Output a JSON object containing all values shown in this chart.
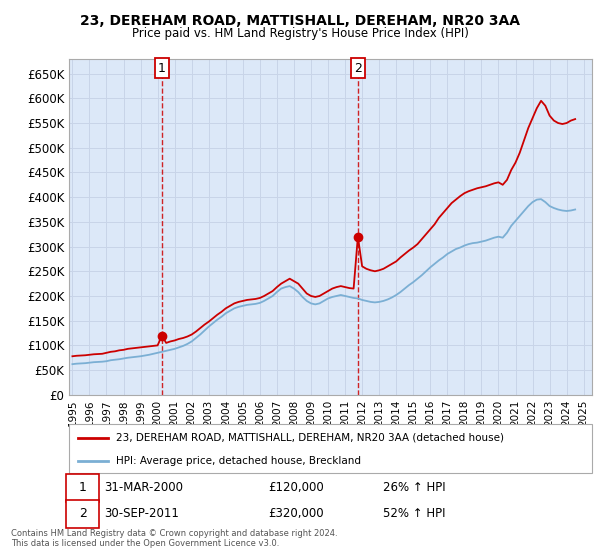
{
  "title": "23, DEREHAM ROAD, MATTISHALL, DEREHAM, NR20 3AA",
  "subtitle": "Price paid vs. HM Land Registry's House Price Index (HPI)",
  "ylim": [
    0,
    680000
  ],
  "yticks": [
    0,
    50000,
    100000,
    150000,
    200000,
    250000,
    300000,
    350000,
    400000,
    450000,
    500000,
    550000,
    600000,
    650000
  ],
  "xlim_start": 1994.8,
  "xlim_end": 2025.5,
  "xtick_years": [
    1995,
    1996,
    1997,
    1998,
    1999,
    2000,
    2001,
    2002,
    2003,
    2004,
    2005,
    2006,
    2007,
    2008,
    2009,
    2010,
    2011,
    2012,
    2013,
    2014,
    2015,
    2016,
    2017,
    2018,
    2019,
    2020,
    2021,
    2022,
    2023,
    2024,
    2025
  ],
  "red_line_color": "#cc0000",
  "blue_line_color": "#7bafd4",
  "grid_color": "#c8d4e8",
  "bg_color": "#dce8f8",
  "sale1_x": 2000.25,
  "sale1_y": 120000,
  "sale2_x": 2011.75,
  "sale2_y": 320000,
  "legend_line1": "23, DEREHAM ROAD, MATTISHALL, DEREHAM, NR20 3AA (detached house)",
  "legend_line2": "HPI: Average price, detached house, Breckland",
  "sale1_date": "31-MAR-2000",
  "sale1_price": "£120,000",
  "sale1_hpi": "26% ↑ HPI",
  "sale2_date": "30-SEP-2011",
  "sale2_price": "£320,000",
  "sale2_hpi": "52% ↑ HPI",
  "footer_line1": "Contains HM Land Registry data © Crown copyright and database right 2024.",
  "footer_line2": "This data is licensed under the Open Government Licence v3.0.",
  "red_hpi_data": [
    [
      1995.0,
      78000
    ],
    [
      1995.25,
      79000
    ],
    [
      1995.5,
      79500
    ],
    [
      1995.75,
      80000
    ],
    [
      1996.0,
      81000
    ],
    [
      1996.25,
      82000
    ],
    [
      1996.5,
      82500
    ],
    [
      1996.75,
      83000
    ],
    [
      1997.0,
      85000
    ],
    [
      1997.25,
      87000
    ],
    [
      1997.5,
      88000
    ],
    [
      1997.75,
      90000
    ],
    [
      1998.0,
      91000
    ],
    [
      1998.25,
      93000
    ],
    [
      1998.5,
      94000
    ],
    [
      1998.75,
      95000
    ],
    [
      1999.0,
      96000
    ],
    [
      1999.25,
      97000
    ],
    [
      1999.5,
      98000
    ],
    [
      1999.75,
      99000
    ],
    [
      2000.0,
      100000
    ],
    [
      2000.25,
      120000
    ],
    [
      2000.5,
      105000
    ],
    [
      2000.75,
      108000
    ],
    [
      2001.0,
      110000
    ],
    [
      2001.25,
      113000
    ],
    [
      2001.5,
      115000
    ],
    [
      2001.75,
      118000
    ],
    [
      2002.0,
      122000
    ],
    [
      2002.25,
      128000
    ],
    [
      2002.5,
      135000
    ],
    [
      2002.75,
      142000
    ],
    [
      2003.0,
      148000
    ],
    [
      2003.25,
      155000
    ],
    [
      2003.5,
      162000
    ],
    [
      2003.75,
      168000
    ],
    [
      2004.0,
      175000
    ],
    [
      2004.25,
      180000
    ],
    [
      2004.5,
      185000
    ],
    [
      2004.75,
      188000
    ],
    [
      2005.0,
      190000
    ],
    [
      2005.25,
      192000
    ],
    [
      2005.5,
      193000
    ],
    [
      2005.75,
      194000
    ],
    [
      2006.0,
      196000
    ],
    [
      2006.25,
      200000
    ],
    [
      2006.5,
      205000
    ],
    [
      2006.75,
      210000
    ],
    [
      2007.0,
      218000
    ],
    [
      2007.25,
      225000
    ],
    [
      2007.5,
      230000
    ],
    [
      2007.75,
      235000
    ],
    [
      2008.0,
      230000
    ],
    [
      2008.25,
      225000
    ],
    [
      2008.5,
      215000
    ],
    [
      2008.75,
      205000
    ],
    [
      2009.0,
      200000
    ],
    [
      2009.25,
      198000
    ],
    [
      2009.5,
      200000
    ],
    [
      2009.75,
      205000
    ],
    [
      2010.0,
      210000
    ],
    [
      2010.25,
      215000
    ],
    [
      2010.5,
      218000
    ],
    [
      2010.75,
      220000
    ],
    [
      2011.0,
      218000
    ],
    [
      2011.25,
      216000
    ],
    [
      2011.5,
      215000
    ],
    [
      2011.75,
      320000
    ],
    [
      2012.0,
      260000
    ],
    [
      2012.25,
      255000
    ],
    [
      2012.5,
      252000
    ],
    [
      2012.75,
      250000
    ],
    [
      2013.0,
      252000
    ],
    [
      2013.25,
      255000
    ],
    [
      2013.5,
      260000
    ],
    [
      2013.75,
      265000
    ],
    [
      2014.0,
      270000
    ],
    [
      2014.25,
      278000
    ],
    [
      2014.5,
      285000
    ],
    [
      2014.75,
      292000
    ],
    [
      2015.0,
      298000
    ],
    [
      2015.25,
      305000
    ],
    [
      2015.5,
      315000
    ],
    [
      2015.75,
      325000
    ],
    [
      2016.0,
      335000
    ],
    [
      2016.25,
      345000
    ],
    [
      2016.5,
      358000
    ],
    [
      2016.75,
      368000
    ],
    [
      2017.0,
      378000
    ],
    [
      2017.25,
      388000
    ],
    [
      2017.5,
      395000
    ],
    [
      2017.75,
      402000
    ],
    [
      2018.0,
      408000
    ],
    [
      2018.25,
      412000
    ],
    [
      2018.5,
      415000
    ],
    [
      2018.75,
      418000
    ],
    [
      2019.0,
      420000
    ],
    [
      2019.25,
      422000
    ],
    [
      2019.5,
      425000
    ],
    [
      2019.75,
      428000
    ],
    [
      2020.0,
      430000
    ],
    [
      2020.25,
      425000
    ],
    [
      2020.5,
      435000
    ],
    [
      2020.75,
      455000
    ],
    [
      2021.0,
      470000
    ],
    [
      2021.25,
      490000
    ],
    [
      2021.5,
      515000
    ],
    [
      2021.75,
      540000
    ],
    [
      2022.0,
      560000
    ],
    [
      2022.25,
      580000
    ],
    [
      2022.5,
      595000
    ],
    [
      2022.75,
      585000
    ],
    [
      2023.0,
      565000
    ],
    [
      2023.25,
      555000
    ],
    [
      2023.5,
      550000
    ],
    [
      2023.75,
      548000
    ],
    [
      2024.0,
      550000
    ],
    [
      2024.25,
      555000
    ],
    [
      2024.5,
      558000
    ]
  ],
  "blue_hpi_data": [
    [
      1995.0,
      62000
    ],
    [
      1995.25,
      63000
    ],
    [
      1995.5,
      63500
    ],
    [
      1995.75,
      64000
    ],
    [
      1996.0,
      65000
    ],
    [
      1996.25,
      66000
    ],
    [
      1996.5,
      66500
    ],
    [
      1996.75,
      67000
    ],
    [
      1997.0,
      68000
    ],
    [
      1997.25,
      70000
    ],
    [
      1997.5,
      71000
    ],
    [
      1997.75,
      72000
    ],
    [
      1998.0,
      73500
    ],
    [
      1998.25,
      75000
    ],
    [
      1998.5,
      76000
    ],
    [
      1998.75,
      77000
    ],
    [
      1999.0,
      78000
    ],
    [
      1999.25,
      79500
    ],
    [
      1999.5,
      81000
    ],
    [
      1999.75,
      83000
    ],
    [
      2000.0,
      85000
    ],
    [
      2000.25,
      87000
    ],
    [
      2000.5,
      89000
    ],
    [
      2000.75,
      91000
    ],
    [
      2001.0,
      93000
    ],
    [
      2001.25,
      96000
    ],
    [
      2001.5,
      99000
    ],
    [
      2001.75,
      103000
    ],
    [
      2002.0,
      108000
    ],
    [
      2002.25,
      115000
    ],
    [
      2002.5,
      122000
    ],
    [
      2002.75,
      130000
    ],
    [
      2003.0,
      138000
    ],
    [
      2003.25,
      145000
    ],
    [
      2003.5,
      152000
    ],
    [
      2003.75,
      158000
    ],
    [
      2004.0,
      165000
    ],
    [
      2004.25,
      170000
    ],
    [
      2004.5,
      175000
    ],
    [
      2004.75,
      178000
    ],
    [
      2005.0,
      180000
    ],
    [
      2005.25,
      182000
    ],
    [
      2005.5,
      183000
    ],
    [
      2005.75,
      184000
    ],
    [
      2006.0,
      186000
    ],
    [
      2006.25,
      190000
    ],
    [
      2006.5,
      195000
    ],
    [
      2006.75,
      200000
    ],
    [
      2007.0,
      208000
    ],
    [
      2007.25,
      215000
    ],
    [
      2007.5,
      218000
    ],
    [
      2007.75,
      220000
    ],
    [
      2008.0,
      215000
    ],
    [
      2008.25,
      208000
    ],
    [
      2008.5,
      198000
    ],
    [
      2008.75,
      190000
    ],
    [
      2009.0,
      185000
    ],
    [
      2009.25,
      183000
    ],
    [
      2009.5,
      185000
    ],
    [
      2009.75,
      190000
    ],
    [
      2010.0,
      195000
    ],
    [
      2010.25,
      198000
    ],
    [
      2010.5,
      200000
    ],
    [
      2010.75,
      202000
    ],
    [
      2011.0,
      200000
    ],
    [
      2011.25,
      198000
    ],
    [
      2011.5,
      196000
    ],
    [
      2011.75,
      195000
    ],
    [
      2012.0,
      192000
    ],
    [
      2012.25,
      190000
    ],
    [
      2012.5,
      188000
    ],
    [
      2012.75,
      187000
    ],
    [
      2013.0,
      188000
    ],
    [
      2013.25,
      190000
    ],
    [
      2013.5,
      193000
    ],
    [
      2013.75,
      197000
    ],
    [
      2014.0,
      202000
    ],
    [
      2014.25,
      208000
    ],
    [
      2014.5,
      215000
    ],
    [
      2014.75,
      222000
    ],
    [
      2015.0,
      228000
    ],
    [
      2015.25,
      235000
    ],
    [
      2015.5,
      242000
    ],
    [
      2015.75,
      250000
    ],
    [
      2016.0,
      258000
    ],
    [
      2016.25,
      265000
    ],
    [
      2016.5,
      272000
    ],
    [
      2016.75,
      278000
    ],
    [
      2017.0,
      285000
    ],
    [
      2017.25,
      290000
    ],
    [
      2017.5,
      295000
    ],
    [
      2017.75,
      298000
    ],
    [
      2018.0,
      302000
    ],
    [
      2018.25,
      305000
    ],
    [
      2018.5,
      307000
    ],
    [
      2018.75,
      308000
    ],
    [
      2019.0,
      310000
    ],
    [
      2019.25,
      312000
    ],
    [
      2019.5,
      315000
    ],
    [
      2019.75,
      318000
    ],
    [
      2020.0,
      320000
    ],
    [
      2020.25,
      318000
    ],
    [
      2020.5,
      328000
    ],
    [
      2020.75,
      342000
    ],
    [
      2021.0,
      352000
    ],
    [
      2021.25,
      362000
    ],
    [
      2021.5,
      372000
    ],
    [
      2021.75,
      382000
    ],
    [
      2022.0,
      390000
    ],
    [
      2022.25,
      395000
    ],
    [
      2022.5,
      396000
    ],
    [
      2022.75,
      390000
    ],
    [
      2023.0,
      382000
    ],
    [
      2023.25,
      378000
    ],
    [
      2023.5,
      375000
    ],
    [
      2023.75,
      373000
    ],
    [
      2024.0,
      372000
    ],
    [
      2024.25,
      373000
    ],
    [
      2024.5,
      375000
    ]
  ]
}
